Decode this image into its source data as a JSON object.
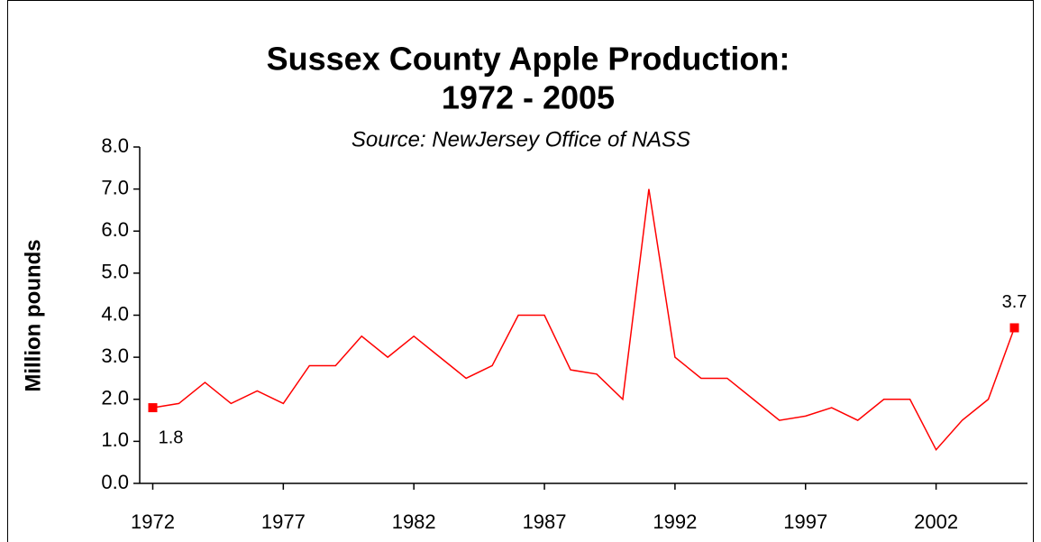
{
  "chart_data": {
    "type": "line",
    "title": [
      "Sussex County Apple Production:",
      "1972 - 2005"
    ],
    "subtitle": "Source: NewJersey Office of NASS",
    "ylabel": "Million pounds",
    "x": [
      1972,
      1973,
      1974,
      1975,
      1976,
      1977,
      1978,
      1979,
      1980,
      1981,
      1982,
      1983,
      1984,
      1985,
      1986,
      1987,
      1988,
      1989,
      1990,
      1991,
      1992,
      1993,
      1994,
      1995,
      1996,
      1997,
      1998,
      1999,
      2000,
      2001,
      2002,
      2003,
      2004,
      2005
    ],
    "series": [
      {
        "name": "Apple production",
        "color": "#ff0000",
        "values": [
          1.8,
          1.9,
          2.4,
          1.9,
          2.2,
          1.9,
          2.8,
          2.8,
          3.5,
          3.0,
          3.5,
          3.0,
          2.5,
          2.8,
          4.0,
          4.0,
          2.7,
          2.6,
          2.0,
          7.0,
          3.0,
          2.5,
          2.5,
          2.0,
          1.5,
          1.6,
          1.8,
          1.5,
          2.0,
          2.0,
          0.8,
          1.5,
          2.0,
          3.7
        ]
      }
    ],
    "markers": "endpoints",
    "xlim": [
      1971.5,
      2005.5
    ],
    "xticks": [
      1972,
      1977,
      1982,
      1987,
      1992,
      1997,
      2002
    ],
    "ylim": [
      0,
      8
    ],
    "yticks": [
      {
        "value": 0,
        "label": "0.0"
      },
      {
        "value": 1,
        "label": "1.0"
      },
      {
        "value": 2,
        "label": "2.0"
      },
      {
        "value": 3,
        "label": "3.0"
      },
      {
        "value": 4,
        "label": "4.0"
      },
      {
        "value": 5,
        "label": "5.0"
      },
      {
        "value": 6,
        "label": "6.0"
      },
      {
        "value": 7,
        "label": "7.0"
      },
      {
        "value": 8,
        "label": "8.0"
      }
    ],
    "grid": false
  }
}
